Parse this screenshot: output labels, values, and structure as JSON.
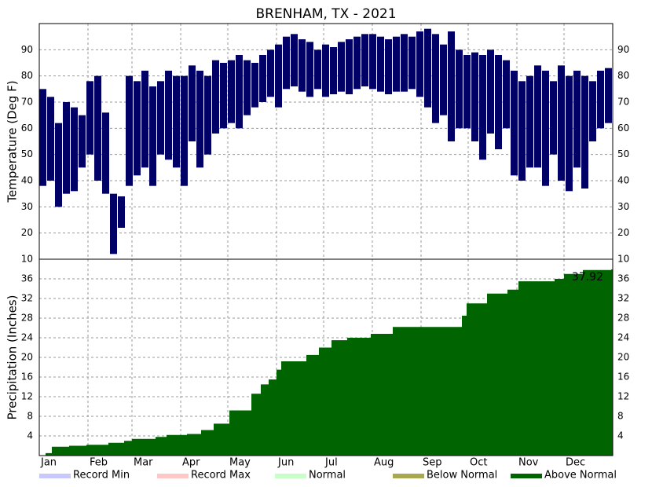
{
  "chart_data": [
    {
      "type": "range-bar",
      "title": "BRENHAM, TX - 2021",
      "y_label": "Temperature (Deg F)",
      "color": "#000066",
      "x": [
        1,
        6,
        11,
        16,
        21,
        26,
        31,
        36,
        41,
        46,
        51,
        56,
        61,
        66,
        71,
        76,
        81,
        86,
        91,
        96,
        101,
        106,
        111,
        116,
        121,
        126,
        131,
        136,
        141,
        146,
        151,
        156,
        161,
        166,
        171,
        176,
        181,
        186,
        191,
        196,
        201,
        206,
        211,
        216,
        221,
        226,
        231,
        236,
        241,
        246,
        251,
        256,
        261,
        266,
        271,
        276,
        281,
        286,
        291,
        296,
        301,
        306,
        311,
        316,
        321,
        326,
        331,
        336,
        341,
        346,
        351,
        356,
        361
      ],
      "high": [
        75,
        72,
        62,
        70,
        68,
        65,
        78,
        80,
        66,
        35,
        34,
        80,
        78,
        82,
        76,
        78,
        82,
        80,
        80,
        84,
        82,
        80,
        86,
        85,
        86,
        88,
        86,
        85,
        88,
        90,
        92,
        95,
        96,
        94,
        93,
        90,
        92,
        91,
        93,
        94,
        95,
        96,
        96,
        95,
        94,
        95,
        96,
        95,
        97,
        98,
        96,
        92,
        97,
        90,
        88,
        89,
        88,
        90,
        88,
        86,
        82,
        78,
        80,
        84,
        82,
        78,
        84,
        80,
        82,
        80,
        78,
        82,
        83
      ],
      "low": [
        38,
        40,
        30,
        35,
        36,
        45,
        50,
        40,
        35,
        12,
        22,
        38,
        42,
        45,
        38,
        50,
        48,
        45,
        38,
        55,
        45,
        50,
        58,
        60,
        62,
        60,
        65,
        68,
        70,
        72,
        68,
        75,
        76,
        74,
        72,
        75,
        72,
        73,
        74,
        73,
        75,
        76,
        75,
        74,
        73,
        74,
        74,
        75,
        72,
        68,
        62,
        65,
        55,
        60,
        60,
        55,
        48,
        58,
        52,
        60,
        42,
        40,
        45,
        45,
        38,
        50,
        40,
        36,
        45,
        37,
        55,
        60,
        62
      ],
      "xlim": [
        1,
        366
      ],
      "ylim": [
        10,
        100
      ],
      "yticks": [
        10,
        20,
        30,
        40,
        50,
        60,
        70,
        80,
        90
      ],
      "grid": true
    },
    {
      "type": "step-area",
      "y_label": "Precipitation (Inches)",
      "color": "#006400",
      "x": [
        1,
        5,
        9,
        20,
        31,
        45,
        55,
        60,
        75,
        82,
        95,
        104,
        112,
        122,
        136,
        142,
        147,
        152,
        155,
        171,
        179,
        187,
        197,
        212,
        226,
        270,
        273,
        286,
        299,
        306,
        329,
        335,
        347,
        365
      ],
      "values": [
        0,
        0.5,
        1.8,
        2.0,
        2.2,
        2.6,
        3.0,
        3.4,
        3.8,
        4.2,
        4.4,
        5.2,
        6.5,
        9.2,
        12.6,
        14.5,
        15.5,
        17.5,
        19.2,
        20.5,
        22,
        23.5,
        24,
        24.8,
        26.2,
        28.5,
        31,
        33,
        33.8,
        35.5,
        36,
        37,
        37.8,
        37.92
      ],
      "xlim": [
        1,
        366
      ],
      "ylim": [
        0,
        40
      ],
      "yticks": [
        4,
        8,
        12,
        16,
        20,
        24,
        28,
        32,
        36
      ],
      "grid": true,
      "xticks": [
        {
          "value": 1,
          "label": "Jan"
        },
        {
          "value": 32,
          "label": "Feb"
        },
        {
          "value": 60,
          "label": "Mar"
        },
        {
          "value": 91,
          "label": "Apr"
        },
        {
          "value": 121,
          "label": "May"
        },
        {
          "value": 152,
          "label": "Jun"
        },
        {
          "value": 182,
          "label": "Jul"
        },
        {
          "value": 213,
          "label": "Aug"
        },
        {
          "value": 244,
          "label": "Sep"
        },
        {
          "value": 274,
          "label": "Oct"
        },
        {
          "value": 305,
          "label": "Nov"
        },
        {
          "value": 335,
          "label": "Dec"
        }
      ],
      "legend": [
        {
          "name": "Record Min",
          "color": "#c8c8ff"
        },
        {
          "name": "Record Max",
          "color": "#ffc8c8"
        },
        {
          "name": "Normal",
          "color": "#c8ffc8"
        },
        {
          "name": "Below Normal",
          "color": "#a8a850"
        },
        {
          "name": "Above Normal",
          "color": "#006400"
        }
      ]
    }
  ]
}
